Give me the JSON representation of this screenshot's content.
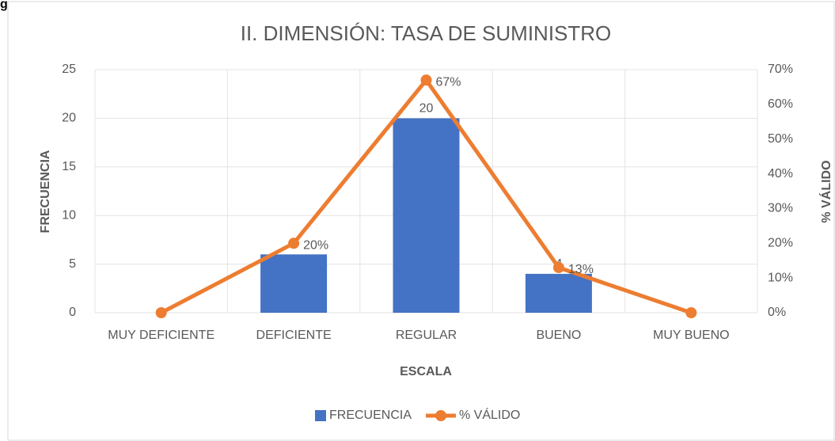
{
  "heading_fragment": "g",
  "chart_data": {
    "type": "bar_line",
    "title": "II. DIMENSIÓN: TASA DE SUMINISTRO",
    "x_label": "ESCALA",
    "y_label": "FRECUENCIA",
    "y2_label": "% VÁLIDO",
    "categories": [
      "MUY DEFICIENTE",
      "DEFICIENTE",
      "REGULAR",
      "BUENO",
      "MUY BUENO"
    ],
    "series": [
      {
        "name": "FRECUENCIA",
        "type": "bar",
        "color": "#4472c4",
        "values": [
          0,
          6,
          20,
          4,
          0
        ],
        "value_labels": [
          null,
          null,
          "20",
          "4",
          null
        ]
      },
      {
        "name": "% VÁLIDO",
        "type": "line",
        "axis": "y2",
        "color": "#ed7d31",
        "values": [
          0,
          20,
          67,
          13,
          0
        ],
        "value_labels": [
          null,
          "20%",
          "67%",
          "13%",
          null
        ]
      }
    ],
    "ylim": [
      0,
      25
    ],
    "yticks": [
      0,
      5,
      10,
      15,
      20,
      25
    ],
    "y2lim": [
      0,
      70
    ],
    "y2ticks": [
      {
        "value": 0,
        "label": "0%"
      },
      {
        "value": 10,
        "label": "10%"
      },
      {
        "value": 20,
        "label": "20%"
      },
      {
        "value": 30,
        "label": "30%"
      },
      {
        "value": 40,
        "label": "40%"
      },
      {
        "value": 50,
        "label": "50%"
      },
      {
        "value": 60,
        "label": "60%"
      },
      {
        "value": 70,
        "label": "70%"
      }
    ],
    "grid": true,
    "legend": "bottom"
  }
}
